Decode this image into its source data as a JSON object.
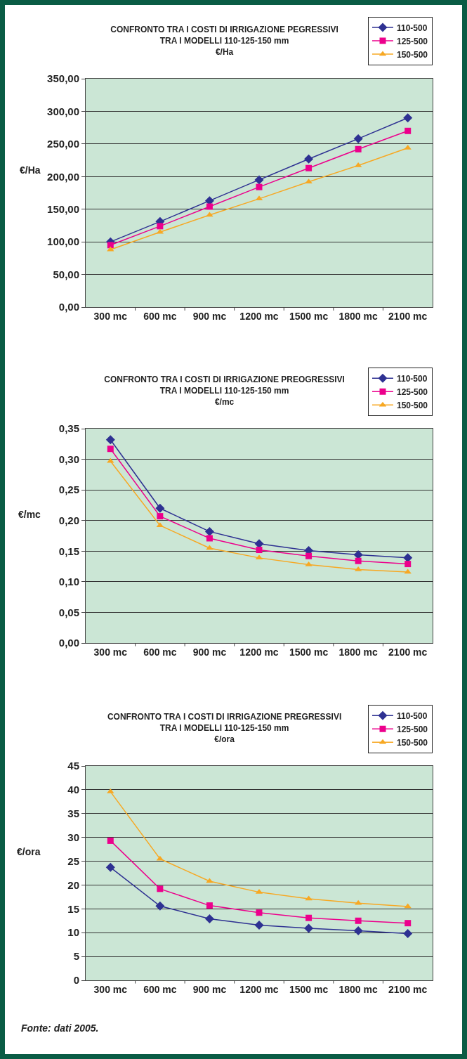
{
  "chart_data": [
    {
      "type": "line",
      "title": "CONFRONTO TRA I COSTI DI IRRIGAZIONE PEGRESSIVI\nTRA I MODELLI 110-125-150 mm",
      "subtitle": "€/Ha",
      "ylabel": "€/Ha",
      "categories": [
        "300 mc",
        "600 mc",
        "900 mc",
        "1200 mc",
        "1500 mc",
        "1800 mc",
        "2100 mc"
      ],
      "series": [
        {
          "name": "110-500",
          "color": "#2e3192",
          "marker": "diamond",
          "values": [
            100,
            131,
            163,
            195,
            227,
            258,
            290
          ]
        },
        {
          "name": "125-500",
          "color": "#ec008c",
          "marker": "square",
          "values": [
            95,
            124,
            154,
            184,
            213,
            242,
            270
          ]
        },
        {
          "name": "150-500",
          "color": "#f7a823",
          "marker": "triangle",
          "values": [
            88,
            115,
            141,
            166,
            192,
            217,
            244
          ]
        }
      ],
      "ylim": [
        0,
        350
      ],
      "yticks": [
        {
          "value": 0,
          "label": "0,00"
        },
        {
          "value": 50,
          "label": "50,00"
        },
        {
          "value": 100,
          "label": "100,00"
        },
        {
          "value": 150,
          "label": "150,00"
        },
        {
          "value": 200,
          "label": "200,00"
        },
        {
          "value": 250,
          "label": "250,00"
        },
        {
          "value": 300,
          "label": "300,00"
        },
        {
          "value": 350,
          "label": "350,00"
        }
      ],
      "grid": "y",
      "legend": "top right",
      "line_style": "solid"
    },
    {
      "type": "line",
      "title": "CONFRONTO TRA I COSTI DI IRRIGAZIONE PREOGRESSIVI\nTRA I MODELLI 110-125-150 mm",
      "subtitle": "€/mc",
      "ylabel": "€/mc",
      "categories": [
        "300 mc",
        "600 mc",
        "900 mc",
        "1200 mc",
        "1500 mc",
        "1800 mc",
        "2100 mc"
      ],
      "series": [
        {
          "name": "110-500",
          "color": "#2e3192",
          "marker": "diamond",
          "values": [
            0.332,
            0.22,
            0.182,
            0.162,
            0.151,
            0.144,
            0.139
          ]
        },
        {
          "name": "125-500",
          "color": "#ec008c",
          "marker": "square",
          "values": [
            0.317,
            0.207,
            0.171,
            0.152,
            0.142,
            0.134,
            0.129
          ]
        },
        {
          "name": "150-500",
          "color": "#f7a823",
          "marker": "triangle",
          "values": [
            0.297,
            0.192,
            0.155,
            0.139,
            0.128,
            0.12,
            0.116
          ]
        }
      ],
      "ylim": [
        0,
        0.35
      ],
      "yticks": [
        {
          "value": 0,
          "label": "0,00"
        },
        {
          "value": 0.05,
          "label": "0,05"
        },
        {
          "value": 0.1,
          "label": "0,10"
        },
        {
          "value": 0.15,
          "label": "0,15"
        },
        {
          "value": 0.2,
          "label": "0,20"
        },
        {
          "value": 0.25,
          "label": "0,25"
        },
        {
          "value": 0.3,
          "label": "0,30"
        },
        {
          "value": 0.35,
          "label": "0,35"
        }
      ],
      "grid": "y",
      "legend": "top right",
      "line_style": "solid"
    },
    {
      "type": "line",
      "title": "CONFRONTO TRA I COSTI DI IRRIGAZIONE PREGRESSIVI\nTRA I MODELLI 110-125-150 mm",
      "subtitle": "€/ora",
      "ylabel": "€/ora",
      "categories": [
        "300 mc",
        "600 mc",
        "900 mc",
        "1200 mc",
        "1500 mc",
        "1800 mc",
        "2100 mc"
      ],
      "series": [
        {
          "name": "110-500",
          "color": "#2e3192",
          "marker": "diamond",
          "values": [
            23.7,
            15.6,
            12.9,
            11.6,
            10.9,
            10.4,
            9.8
          ]
        },
        {
          "name": "125-500",
          "color": "#ec008c",
          "marker": "square",
          "values": [
            29.3,
            19.2,
            15.7,
            14.2,
            13.1,
            12.5,
            12.0
          ]
        },
        {
          "name": "150-500",
          "color": "#f7a823",
          "marker": "triangle",
          "values": [
            39.6,
            25.5,
            20.8,
            18.5,
            17.1,
            16.2,
            15.5
          ]
        }
      ],
      "ylim": [
        0,
        45
      ],
      "yticks": [
        0,
        5,
        10,
        15,
        20,
        25,
        30,
        35,
        40,
        45
      ],
      "grid": "y",
      "legend": "top right",
      "line_style": "solid",
      "annotations": [
        "Fonte: dati 2005."
      ]
    }
  ]
}
